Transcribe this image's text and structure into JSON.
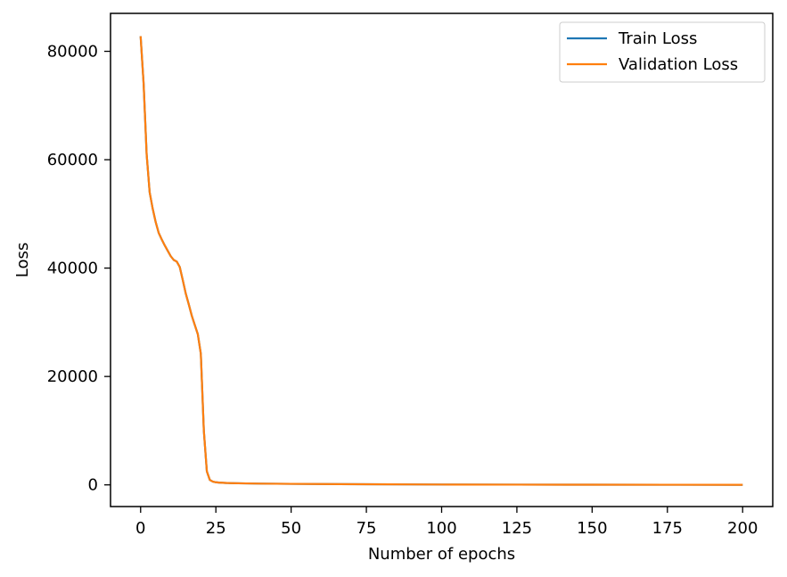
{
  "chart_data": {
    "type": "line",
    "xlabel": "Number of epochs",
    "ylabel": "Loss",
    "xlim": [
      -10,
      210
    ],
    "ylim": [
      -4000,
      87000
    ],
    "xticks": [
      0,
      25,
      50,
      75,
      100,
      125,
      150,
      175,
      200
    ],
    "yticks": [
      0,
      20000,
      40000,
      60000,
      80000
    ],
    "grid": false,
    "legend_position": "top-right",
    "x": [
      0,
      1,
      2,
      3,
      4,
      5,
      6,
      7,
      8,
      9,
      10,
      11,
      12,
      13,
      14,
      15,
      16,
      17,
      18,
      19,
      20,
      21,
      22,
      23,
      24,
      25,
      26,
      28,
      30,
      35,
      40,
      50,
      60,
      75,
      90,
      100,
      125,
      150,
      175,
      200
    ],
    "series": [
      {
        "name": "Train Loss",
        "color": "#1f77b4",
        "values": [
          82800,
          74000,
          61000,
          54000,
          51000,
          48500,
          46500,
          45300,
          44200,
          43200,
          42200,
          41500,
          41200,
          40200,
          37800,
          35300,
          33300,
          31200,
          29500,
          27800,
          24200,
          10000,
          2500,
          900,
          600,
          480,
          420,
          360,
          320,
          270,
          230,
          190,
          150,
          110,
          80,
          60,
          40,
          30,
          20,
          15
        ]
      },
      {
        "name": "Validation Loss",
        "color": "#ff7f0e",
        "values": [
          82800,
          74000,
          61000,
          54000,
          51000,
          48500,
          46500,
          45300,
          44200,
          43200,
          42200,
          41500,
          41200,
          40200,
          37800,
          35300,
          33300,
          31200,
          29500,
          27800,
          24200,
          10000,
          2500,
          900,
          600,
          480,
          420,
          360,
          320,
          270,
          230,
          190,
          150,
          110,
          80,
          60,
          40,
          30,
          20,
          15
        ]
      }
    ]
  }
}
